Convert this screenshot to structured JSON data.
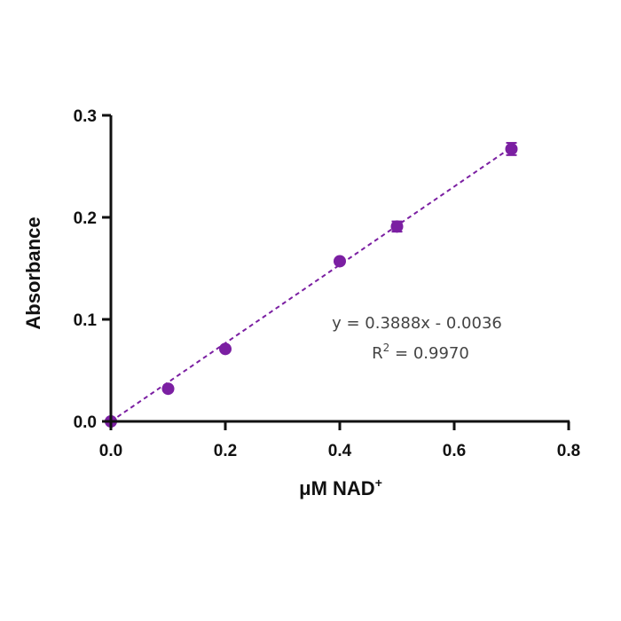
{
  "chart_data": {
    "type": "scatter",
    "xlabel": "μM NAD",
    "xlabel_sup": "+",
    "ylabel": "Absorbance",
    "xlim": [
      0,
      0.8
    ],
    "ylim": [
      0,
      0.3
    ],
    "xticks": [
      "0.0",
      "0.2",
      "0.4",
      "0.6",
      "0.8"
    ],
    "yticks": [
      "0.0",
      "0.1",
      "0.2",
      "0.3"
    ],
    "grid": false,
    "marker_color": "#7b1fa2",
    "series": [
      {
        "x": [
          0.0,
          0.1,
          0.2,
          0.4,
          0.5,
          0.7
        ],
        "y": [
          0.0,
          0.032,
          0.071,
          0.157,
          0.191,
          0.267
        ],
        "error": [
          0.0,
          0.0,
          0.0,
          0.0,
          0.005,
          0.006
        ]
      }
    ],
    "trendline": {
      "slope": 0.3888,
      "intercept": -0.0036,
      "style": "dashed"
    },
    "annotations": {
      "equation": "y = 0.3888x - 0.0036",
      "r2_prefix": "R",
      "r2_sup": "2",
      "r2_value": " = 0.9970"
    }
  }
}
